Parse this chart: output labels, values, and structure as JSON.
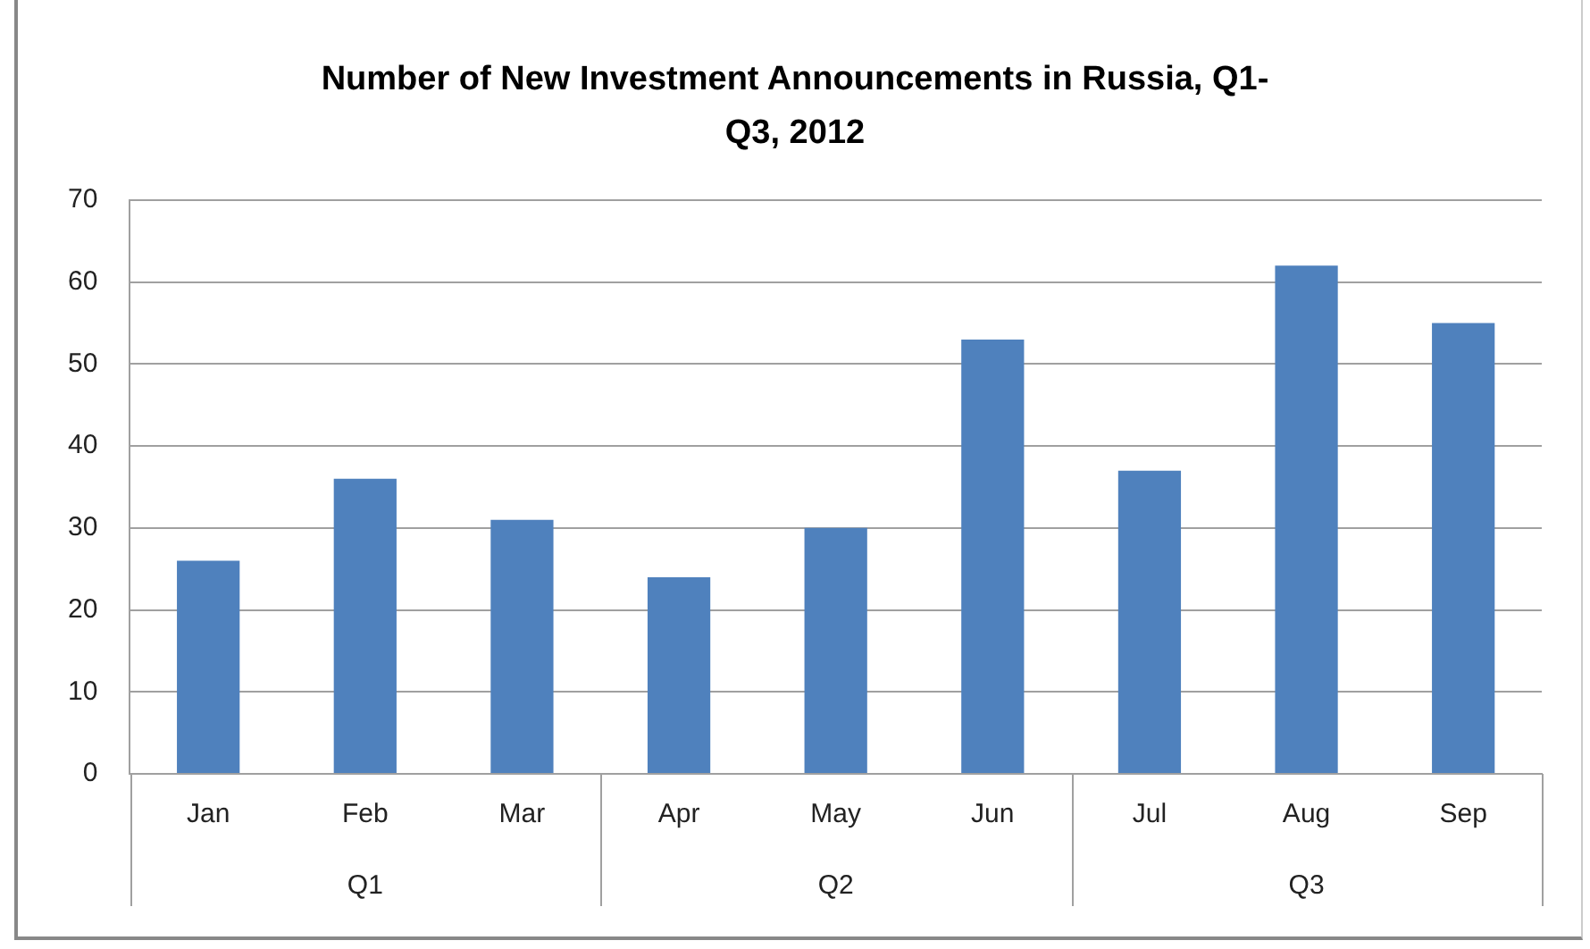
{
  "chart_data": {
    "type": "bar",
    "title": "Number of New Investment Announcements in Russia, Q1-Q3, 2012",
    "categories": [
      "Jan",
      "Feb",
      "Mar",
      "Apr",
      "May",
      "Jun",
      "Jul",
      "Aug",
      "Sep"
    ],
    "values": [
      26,
      36,
      31,
      24,
      30,
      53,
      37,
      62,
      55
    ],
    "color": "#4f81bd",
    "ylim": [
      0,
      70
    ],
    "yticks": [
      0,
      10,
      20,
      30,
      40,
      50,
      60,
      70
    ],
    "grid": "y",
    "legend": false,
    "annotations": [
      "Q1",
      "Q2",
      "Q3"
    ]
  }
}
